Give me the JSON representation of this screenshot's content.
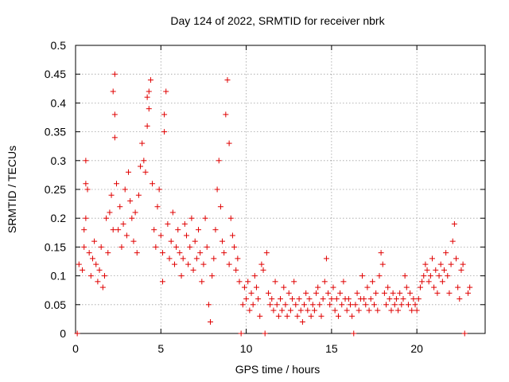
{
  "chart_data": {
    "type": "scatter",
    "title": "Day 124 of 2022, SRMTID for receiver nbrk",
    "xlabel": "GPS time / hours",
    "ylabel": "SRMTID / TECUs",
    "xlim": [
      0,
      24
    ],
    "ylim": [
      0,
      0.5
    ],
    "xticks": [
      "0",
      "5",
      "10",
      "15",
      "20"
    ],
    "yticks": [
      "0",
      "0.05",
      "0.1",
      "0.15",
      "0.2",
      "0.25",
      "0.3",
      "0.35",
      "0.4",
      "0.45",
      "0.5"
    ],
    "grid": true,
    "marker": "+",
    "color": "#e00000",
    "series": [
      {
        "name": "SRMTID",
        "points": [
          [
            0.1,
            0.0
          ],
          [
            0.2,
            0.12
          ],
          [
            0.4,
            0.11
          ],
          [
            0.5,
            0.15
          ],
          [
            0.5,
            0.18
          ],
          [
            0.6,
            0.2
          ],
          [
            0.6,
            0.3
          ],
          [
            0.6,
            0.26
          ],
          [
            0.7,
            0.25
          ],
          [
            0.8,
            0.14
          ],
          [
            0.9,
            0.1
          ],
          [
            1.0,
            0.13
          ],
          [
            1.1,
            0.16
          ],
          [
            1.2,
            0.12
          ],
          [
            1.3,
            0.09
          ],
          [
            1.4,
            0.11
          ],
          [
            1.5,
            0.15
          ],
          [
            1.6,
            0.08
          ],
          [
            1.7,
            0.1
          ],
          [
            1.8,
            0.2
          ],
          [
            1.9,
            0.14
          ],
          [
            2.0,
            0.21
          ],
          [
            2.1,
            0.24
          ],
          [
            2.2,
            0.18
          ],
          [
            2.2,
            0.42
          ],
          [
            2.3,
            0.45
          ],
          [
            2.3,
            0.38
          ],
          [
            2.3,
            0.34
          ],
          [
            2.4,
            0.26
          ],
          [
            2.5,
            0.18
          ],
          [
            2.6,
            0.22
          ],
          [
            2.7,
            0.15
          ],
          [
            2.8,
            0.19
          ],
          [
            2.9,
            0.25
          ],
          [
            3.0,
            0.17
          ],
          [
            3.1,
            0.28
          ],
          [
            3.2,
            0.23
          ],
          [
            3.3,
            0.2
          ],
          [
            3.4,
            0.16
          ],
          [
            3.5,
            0.21
          ],
          [
            3.6,
            0.14
          ],
          [
            3.7,
            0.24
          ],
          [
            3.8,
            0.29
          ],
          [
            3.9,
            0.33
          ],
          [
            4.0,
            0.3
          ],
          [
            4.1,
            0.28
          ],
          [
            4.2,
            0.36
          ],
          [
            4.2,
            0.41
          ],
          [
            4.3,
            0.42
          ],
          [
            4.3,
            0.39
          ],
          [
            4.4,
            0.44
          ],
          [
            4.5,
            0.26
          ],
          [
            4.6,
            0.18
          ],
          [
            4.7,
            0.15
          ],
          [
            4.8,
            0.22
          ],
          [
            4.9,
            0.25
          ],
          [
            5.0,
            0.17
          ],
          [
            5.1,
            0.14
          ],
          [
            5.1,
            0.09
          ],
          [
            5.2,
            0.38
          ],
          [
            5.2,
            0.35
          ],
          [
            5.3,
            0.42
          ],
          [
            5.4,
            0.19
          ],
          [
            5.5,
            0.13
          ],
          [
            5.6,
            0.16
          ],
          [
            5.7,
            0.21
          ],
          [
            5.8,
            0.12
          ],
          [
            5.9,
            0.15
          ],
          [
            6.0,
            0.18
          ],
          [
            6.1,
            0.14
          ],
          [
            6.2,
            0.1
          ],
          [
            6.3,
            0.13
          ],
          [
            6.4,
            0.19
          ],
          [
            6.5,
            0.17
          ],
          [
            6.6,
            0.12
          ],
          [
            6.7,
            0.15
          ],
          [
            6.8,
            0.2
          ],
          [
            6.9,
            0.11
          ],
          [
            7.0,
            0.16
          ],
          [
            7.1,
            0.13
          ],
          [
            7.2,
            0.18
          ],
          [
            7.3,
            0.14
          ],
          [
            7.4,
            0.09
          ],
          [
            7.5,
            0.12
          ],
          [
            7.6,
            0.2
          ],
          [
            7.7,
            0.15
          ],
          [
            7.8,
            0.05
          ],
          [
            7.9,
            0.02
          ],
          [
            8.0,
            0.1
          ],
          [
            8.1,
            0.13
          ],
          [
            8.2,
            0.18
          ],
          [
            8.3,
            0.25
          ],
          [
            8.4,
            0.3
          ],
          [
            8.5,
            0.22
          ],
          [
            8.6,
            0.16
          ],
          [
            8.7,
            0.14
          ],
          [
            8.8,
            0.38
          ],
          [
            8.9,
            0.44
          ],
          [
            9.0,
            0.33
          ],
          [
            9.0,
            0.12
          ],
          [
            9.1,
            0.2
          ],
          [
            9.2,
            0.17
          ],
          [
            9.3,
            0.15
          ],
          [
            9.4,
            0.11
          ],
          [
            9.5,
            0.13
          ],
          [
            9.6,
            0.09
          ],
          [
            9.7,
            0.0
          ],
          [
            9.8,
            0.05
          ],
          [
            9.9,
            0.08
          ],
          [
            10.0,
            0.06
          ],
          [
            10.1,
            0.09
          ],
          [
            10.2,
            0.04
          ],
          [
            10.3,
            0.07
          ],
          [
            10.4,
            0.05
          ],
          [
            10.5,
            0.1
          ],
          [
            10.6,
            0.08
          ],
          [
            10.7,
            0.06
          ],
          [
            10.8,
            0.03
          ],
          [
            10.9,
            0.12
          ],
          [
            11.0,
            0.11
          ],
          [
            11.1,
            0.0
          ],
          [
            11.2,
            0.14
          ],
          [
            11.3,
            0.07
          ],
          [
            11.4,
            0.05
          ],
          [
            11.5,
            0.06
          ],
          [
            11.6,
            0.04
          ],
          [
            11.7,
            0.09
          ],
          [
            11.8,
            0.05
          ],
          [
            11.9,
            0.03
          ],
          [
            12.0,
            0.06
          ],
          [
            12.1,
            0.04
          ],
          [
            12.2,
            0.08
          ],
          [
            12.3,
            0.05
          ],
          [
            12.4,
            0.03
          ],
          [
            12.5,
            0.07
          ],
          [
            12.6,
            0.04
          ],
          [
            12.7,
            0.06
          ],
          [
            12.8,
            0.09
          ],
          [
            12.9,
            0.05
          ],
          [
            13.0,
            0.03
          ],
          [
            13.1,
            0.06
          ],
          [
            13.2,
            0.04
          ],
          [
            13.3,
            0.02
          ],
          [
            13.4,
            0.05
          ],
          [
            13.5,
            0.07
          ],
          [
            13.6,
            0.04
          ],
          [
            13.7,
            0.06
          ],
          [
            13.8,
            0.03
          ],
          [
            13.9,
            0.05
          ],
          [
            14.0,
            0.04
          ],
          [
            14.1,
            0.07
          ],
          [
            14.2,
            0.08
          ],
          [
            14.3,
            0.05
          ],
          [
            14.4,
            0.03
          ],
          [
            14.5,
            0.06
          ],
          [
            14.6,
            0.09
          ],
          [
            14.7,
            0.13
          ],
          [
            14.8,
            0.07
          ],
          [
            14.9,
            0.05
          ],
          [
            15.0,
            0.06
          ],
          [
            15.1,
            0.08
          ],
          [
            15.2,
            0.04
          ],
          [
            15.3,
            0.06
          ],
          [
            15.4,
            0.03
          ],
          [
            15.5,
            0.07
          ],
          [
            15.6,
            0.05
          ],
          [
            15.7,
            0.09
          ],
          [
            15.8,
            0.06
          ],
          [
            15.9,
            0.04
          ],
          [
            16.0,
            0.06
          ],
          [
            16.1,
            0.05
          ],
          [
            16.2,
            0.03
          ],
          [
            16.3,
            0.0
          ],
          [
            16.4,
            0.05
          ],
          [
            16.5,
            0.07
          ],
          [
            16.6,
            0.04
          ],
          [
            16.7,
            0.06
          ],
          [
            16.8,
            0.1
          ],
          [
            16.9,
            0.06
          ],
          [
            17.0,
            0.05
          ],
          [
            17.1,
            0.08
          ],
          [
            17.2,
            0.04
          ],
          [
            17.3,
            0.06
          ],
          [
            17.4,
            0.09
          ],
          [
            17.5,
            0.05
          ],
          [
            17.6,
            0.07
          ],
          [
            17.7,
            0.04
          ],
          [
            17.8,
            0.1
          ],
          [
            17.9,
            0.14
          ],
          [
            18.0,
            0.12
          ],
          [
            18.1,
            0.07
          ],
          [
            18.2,
            0.05
          ],
          [
            18.3,
            0.08
          ],
          [
            18.4,
            0.06
          ],
          [
            18.5,
            0.04
          ],
          [
            18.6,
            0.07
          ],
          [
            18.7,
            0.05
          ],
          [
            18.8,
            0.06
          ],
          [
            18.9,
            0.04
          ],
          [
            19.0,
            0.07
          ],
          [
            19.1,
            0.05
          ],
          [
            19.2,
            0.06
          ],
          [
            19.3,
            0.1
          ],
          [
            19.4,
            0.08
          ],
          [
            19.5,
            0.05
          ],
          [
            19.6,
            0.07
          ],
          [
            19.7,
            0.04
          ],
          [
            19.8,
            0.06
          ],
          [
            19.9,
            0.05
          ],
          [
            20.0,
            0.04
          ],
          [
            20.1,
            0.06
          ],
          [
            20.2,
            0.08
          ],
          [
            20.3,
            0.09
          ],
          [
            20.4,
            0.1
          ],
          [
            20.5,
            0.12
          ],
          [
            20.6,
            0.11
          ],
          [
            20.7,
            0.09
          ],
          [
            20.8,
            0.1
          ],
          [
            20.9,
            0.13
          ],
          [
            21.0,
            0.08
          ],
          [
            21.1,
            0.11
          ],
          [
            21.2,
            0.07
          ],
          [
            21.3,
            0.1
          ],
          [
            21.4,
            0.12
          ],
          [
            21.5,
            0.09
          ],
          [
            21.6,
            0.11
          ],
          [
            21.7,
            0.14
          ],
          [
            21.8,
            0.1
          ],
          [
            21.9,
            0.07
          ],
          [
            22.0,
            0.12
          ],
          [
            22.1,
            0.16
          ],
          [
            22.2,
            0.19
          ],
          [
            22.3,
            0.13
          ],
          [
            22.4,
            0.08
          ],
          [
            22.5,
            0.06
          ],
          [
            22.6,
            0.11
          ],
          [
            22.7,
            0.12
          ],
          [
            22.8,
            0.0
          ],
          [
            23.0,
            0.07
          ],
          [
            23.1,
            0.08
          ]
        ]
      }
    ]
  }
}
